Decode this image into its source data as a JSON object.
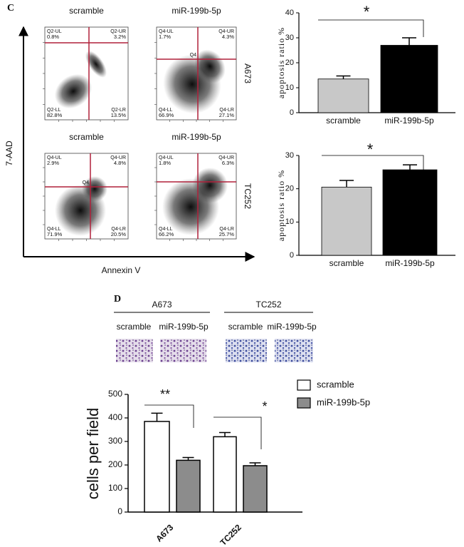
{
  "flow_cytometry": {
    "label": "C",
    "y_axis": "7-AAD",
    "x_axis": "Annexin V",
    "rows": [
      {
        "label": "A673",
        "plots": [
          {
            "title": "scramble",
            "quadrants": [
              {
                "name": "Q2-UL",
                "value": "0.8%"
              },
              {
                "name": "Q2-UR",
                "value": "3.2%"
              },
              {
                "name": "Q2-LL",
                "value": "82.8%"
              },
              {
                "name": "Q2-LR",
                "value": "13.5%"
              }
            ]
          },
          {
            "title": "miR-199b-5p",
            "center": "Q4",
            "quadrants": [
              {
                "name": "Q4-UL",
                "value": "1.7%"
              },
              {
                "name": "Q4-UR",
                "value": "4.3%"
              },
              {
                "name": "Q4-LL",
                "value": "66.9%"
              },
              {
                "name": "Q4-LR",
                "value": "27.1%"
              }
            ]
          }
        ]
      },
      {
        "label": "TC252",
        "plots": [
          {
            "title": "scramble",
            "center": "Q4",
            "quadrants": [
              {
                "name": "Q4-UL",
                "value": "2.9%"
              },
              {
                "name": "Q4-UR",
                "value": "4.8%"
              },
              {
                "name": "Q4-LL",
                "value": "71.9%"
              },
              {
                "name": "Q4-LR",
                "value": "20.5%"
              }
            ]
          },
          {
            "title": "miR-199b-5p",
            "quadrants": [
              {
                "name": "Q4-UL",
                "value": "1.8%"
              },
              {
                "name": "Q4-UR",
                "value": "6.3%"
              },
              {
                "name": "Q4-LL",
                "value": "66.2%"
              },
              {
                "name": "Q4-LR",
                "value": "25.7%"
              }
            ]
          }
        ]
      }
    ]
  },
  "transwell": {
    "label": "D",
    "groups": [
      {
        "name": "A673",
        "conditions": [
          "scramble",
          "miR-199b-5p"
        ]
      },
      {
        "name": "TC252",
        "conditions": [
          "scramble",
          "miR-199b-5p"
        ]
      }
    ]
  },
  "chart_data": [
    {
      "type": "bar",
      "y_label": "apoptosis ratio %",
      "categories": [
        "scramble",
        "miR-199b-5p"
      ],
      "values": [
        13.5,
        27
      ],
      "errors": [
        1.2,
        3
      ],
      "colors": [
        "#c8c8c8",
        "#000000"
      ],
      "ylim": [
        0,
        40
      ],
      "yticks": [
        0,
        10,
        20,
        30,
        40
      ],
      "significance": "*"
    },
    {
      "type": "bar",
      "y_label": "apoptosis ratio %",
      "categories": [
        "scramble",
        "miR-199b-5p"
      ],
      "values": [
        20.5,
        25.7
      ],
      "errors": [
        2,
        1.5
      ],
      "colors": [
        "#c8c8c8",
        "#000000"
      ],
      "ylim": [
        0,
        30
      ],
      "yticks": [
        0,
        10,
        20,
        30
      ],
      "significance": "*"
    },
    {
      "type": "grouped_bar",
      "y_label": "cells per field",
      "categories": [
        "A673",
        "TC252"
      ],
      "series": [
        {
          "name": "scramble",
          "color": "#ffffff",
          "values": [
            385,
            320
          ],
          "errors": [
            35,
            18
          ]
        },
        {
          "name": "miR-199b-5p",
          "color": "#8c8c8c",
          "values": [
            220,
            197
          ],
          "errors": [
            12,
            12
          ]
        }
      ],
      "ylim": [
        0,
        500
      ],
      "yticks": [
        0,
        100,
        200,
        300,
        400,
        500
      ],
      "significance": [
        "**",
        "*"
      ],
      "legend": "top-right"
    }
  ]
}
